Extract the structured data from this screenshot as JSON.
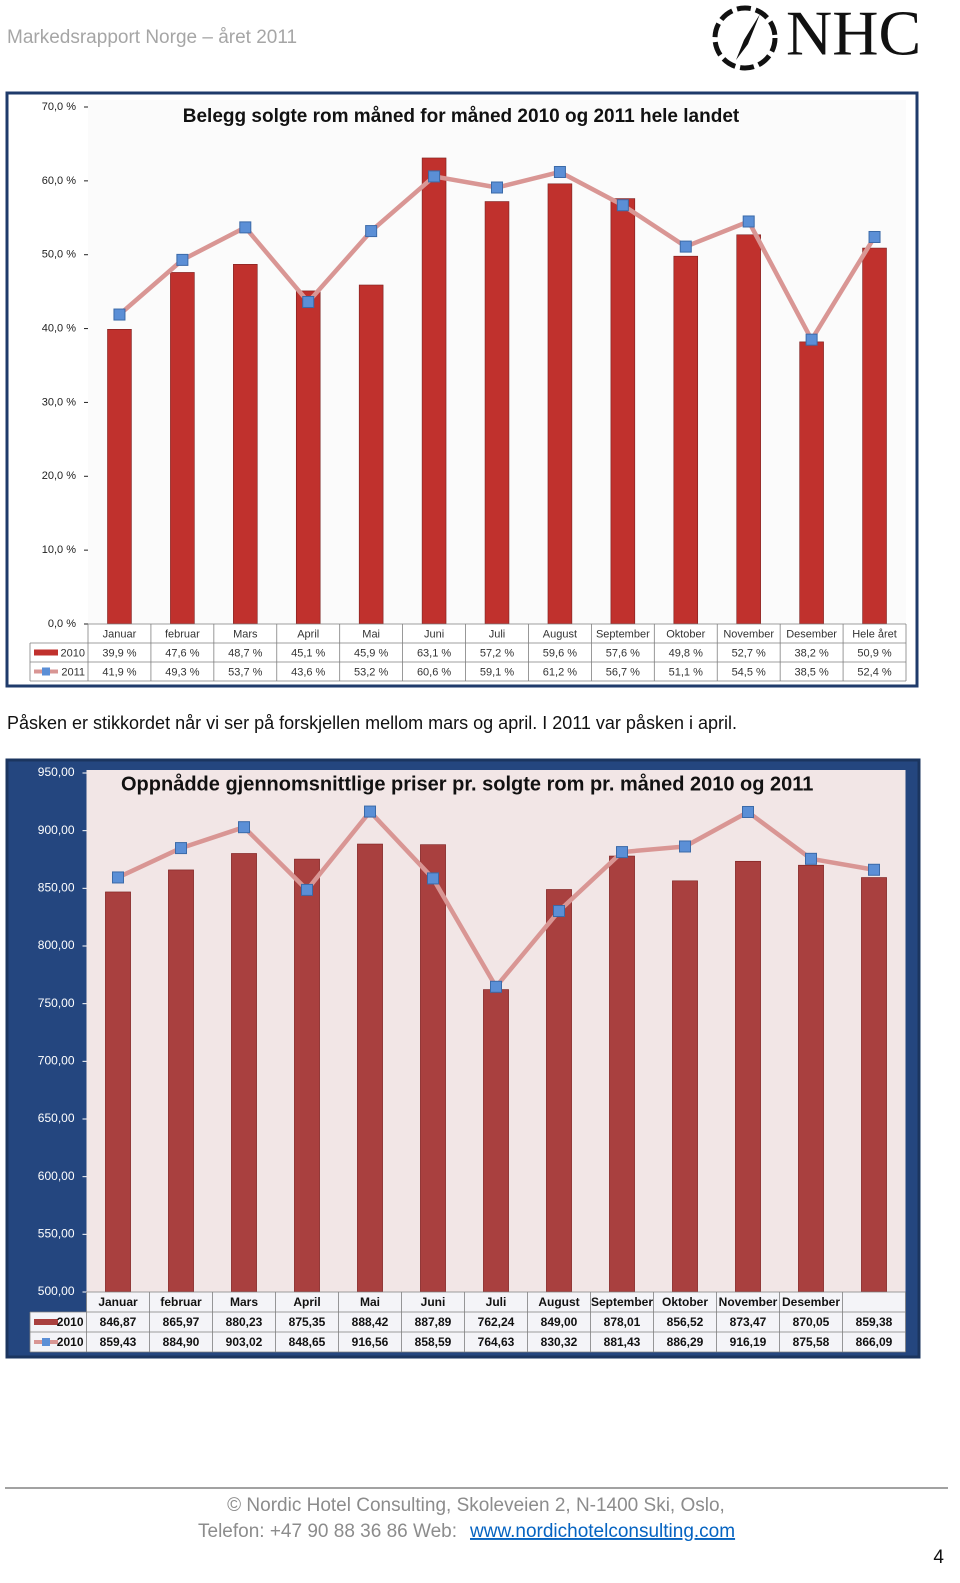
{
  "header": {
    "title": "Markedsrapport Norge – året 2011",
    "logo": "NHC"
  },
  "chart_data": [
    {
      "type": "bar",
      "title": "Belegg solgte rom måned for måned 2010 og 2011 hele landet",
      "categories": [
        "Januar",
        "februar",
        "Mars",
        "April",
        "Mai",
        "Juni",
        "Juli",
        "August",
        "September",
        "Oktober",
        "November",
        "Desember",
        "Hele året"
      ],
      "series": [
        {
          "name": "2010",
          "type": "bar",
          "color": "#c0312d",
          "values": [
            39.9,
            47.6,
            48.7,
            45.1,
            45.9,
            63.1,
            57.2,
            59.6,
            57.6,
            49.8,
            52.7,
            38.2,
            50.9
          ],
          "value_labels": [
            "39,9 %",
            "47,6 %",
            "48,7 %",
            "45,1 %",
            "45,9 %",
            "63,1 %",
            "57,2 %",
            "59,6 %",
            "57,6 %",
            "49,8 %",
            "52,7 %",
            "38,2 %",
            "50,9 %"
          ]
        },
        {
          "name": "2011",
          "type": "line",
          "color": "#d99694",
          "marker_color": "#5b8fd6",
          "values": [
            41.9,
            49.3,
            53.7,
            43.6,
            53.2,
            60.6,
            59.1,
            61.2,
            56.7,
            51.1,
            54.5,
            38.5,
            52.4
          ],
          "value_labels": [
            "41,9 %",
            "49,3 %",
            "53,7 %",
            "43,6 %",
            "53,2 %",
            "60,6 %",
            "59,1 %",
            "61,2 %",
            "56,7 %",
            "51,1 %",
            "54,5 %",
            "38,5 %",
            "52,4 %"
          ]
        }
      ],
      "ylim": [
        0,
        70
      ],
      "yticks": [
        {
          "value": 0,
          "label": "0,0 %"
        },
        {
          "value": 10,
          "label": "10,0 %"
        },
        {
          "value": 20,
          "label": "20,0 %"
        },
        {
          "value": 30,
          "label": "30,0 %"
        },
        {
          "value": 40,
          "label": "40,0 %"
        },
        {
          "value": 50,
          "label": "50,0 %"
        },
        {
          "value": 60,
          "label": "60,0 %"
        },
        {
          "value": 70,
          "label": "70,0 %"
        }
      ],
      "grid": false
    },
    {
      "type": "bar",
      "title": "Oppnådde gjennomsnittlige priser pr. solgte rom pr. måned 2010  og 2011",
      "categories": [
        "Januar",
        "februar",
        "Mars",
        "April",
        "Mai",
        "Juni",
        "Juli",
        "August",
        "September",
        "Oktober",
        "November",
        "Desember",
        null
      ],
      "series": [
        {
          "name": "2010",
          "type": "bar",
          "color": "#a9403f",
          "values": [
            846.87,
            865.97,
            880.23,
            875.35,
            888.42,
            887.89,
            762.24,
            849.0,
            878.01,
            856.52,
            873.47,
            870.05,
            859.38
          ],
          "value_labels": [
            "846,87",
            "865,97",
            "880,23",
            "875,35",
            "888,42",
            "887,89",
            "762,24",
            "849,00",
            "878,01",
            "856,52",
            "873,47",
            "870,05",
            "859,38"
          ]
        },
        {
          "name": "2010",
          "type": "line",
          "color": "#d99694",
          "marker_color": "#5b8fd6",
          "values": [
            859.43,
            884.9,
            903.02,
            848.65,
            916.56,
            858.59,
            764.63,
            830.32,
            881.43,
            886.29,
            916.19,
            875.58,
            866.09
          ],
          "value_labels": [
            "859,43",
            "884,90",
            "903,02",
            "848,65",
            "916,56",
            "858,59",
            "764,63",
            "830,32",
            "881,43",
            "886,29",
            "916,19",
            "875,58",
            "866,09"
          ]
        }
      ],
      "ylim": [
        500,
        950
      ],
      "yticks": [
        {
          "value": 500,
          "label": "500,00"
        },
        {
          "value": 550,
          "label": "550,00"
        },
        {
          "value": 600,
          "label": "600,00"
        },
        {
          "value": 650,
          "label": "650,00"
        },
        {
          "value": 700,
          "label": "700,00"
        },
        {
          "value": 750,
          "label": "750,00"
        },
        {
          "value": 800,
          "label": "800,00"
        },
        {
          "value": 850,
          "label": "850,00"
        },
        {
          "value": 900,
          "label": "900,00"
        },
        {
          "value": 950,
          "label": "950,00"
        }
      ],
      "grid": false
    }
  ],
  "paragraph": "Påsken er stikkordet når vi ser på forskjellen mellom mars og april. I 2011 var påsken i april.",
  "footer": {
    "line1": "© Nordic Hotel Consulting, Skoleveien 2, N-1400 Ski, Oslo,",
    "line2": "Telefon: +47 90 88 36 86 Web:",
    "link": "www.nordichotelconsulting.com",
    "page": "4"
  }
}
